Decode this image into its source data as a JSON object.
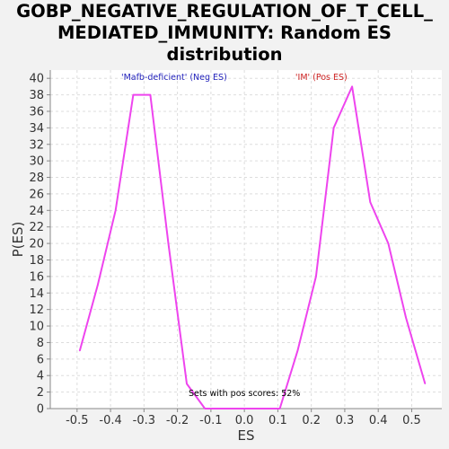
{
  "chart_data": {
    "type": "line",
    "title_lines": [
      "GOBP_NEGATIVE_REGULATION_OF_T_CELL_",
      "MEDIATED_IMMUNITY: Random ES",
      "distribution"
    ],
    "xlabel": "ES",
    "ylabel": "P(ES)",
    "xlim": [
      -0.58,
      0.59
    ],
    "ylim": [
      0,
      41
    ],
    "x_ticks": [
      -0.5,
      -0.4,
      -0.3,
      -0.2,
      -0.1,
      0.0,
      0.1,
      0.2,
      0.3,
      0.4,
      0.5
    ],
    "x_tick_labels": [
      "-0.5",
      "-0.4",
      "-0.3",
      "-0.2",
      "-0.1",
      "0.0",
      "0.1",
      "0.2",
      "0.3",
      "0.4",
      "0.5"
    ],
    "y_ticks": [
      0,
      2,
      4,
      6,
      8,
      10,
      12,
      14,
      16,
      18,
      20,
      22,
      24,
      26,
      28,
      30,
      32,
      34,
      36,
      38,
      40
    ],
    "grid": true,
    "series": [
      {
        "color": "#ee44ee",
        "x": [
          -0.492,
          -0.438,
          -0.385,
          -0.332,
          -0.281,
          -0.227,
          -0.172,
          -0.118,
          -0.065,
          -0.011,
          0.042,
          0.106,
          0.159,
          0.214,
          0.267,
          0.322,
          0.376,
          0.43,
          0.483,
          0.54
        ],
        "y": [
          7,
          15,
          24,
          38,
          38,
          20,
          3,
          0,
          0,
          0,
          0,
          0,
          7,
          16,
          34,
          39,
          25,
          20,
          11,
          3
        ]
      }
    ],
    "annotations": [
      {
        "text": "'Mafb-deficient' (Neg ES)",
        "color": "#2222bb",
        "x": -0.21,
        "y": 39.8
      },
      {
        "text": "'IM' (Pos ES)",
        "color": "#cc2222",
        "x": 0.23,
        "y": 39.8
      },
      {
        "text": "Sets with pos scores: 52%",
        "color": "#000000",
        "x": 0.0,
        "y": 1.5
      }
    ]
  }
}
